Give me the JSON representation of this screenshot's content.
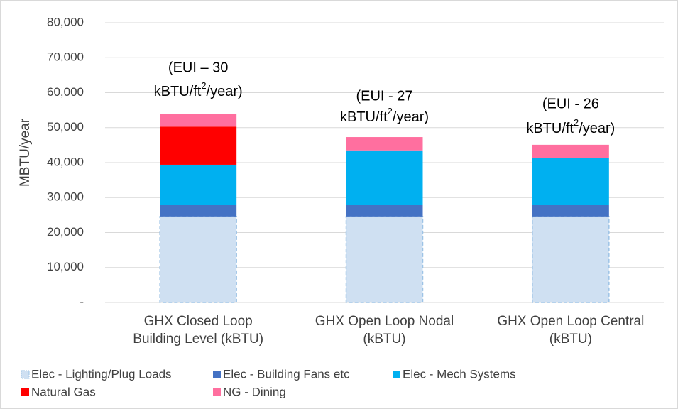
{
  "chart_data": {
    "type": "stacked_bar",
    "y_label": "MBTU/year",
    "categories": [
      [
        "GHX Closed Loop",
        "Building Level (kBTU)"
      ],
      [
        "GHX Open Loop Nodal",
        "(kBTU)"
      ],
      [
        "GHX Open Loop Central",
        "(kBTU)"
      ]
    ],
    "series": [
      {
        "name": "Elec - Lighting/Plug Loads",
        "color": "#cfe0f2",
        "values": [
          24600,
          24600,
          24600
        ]
      },
      {
        "name": "Elec - Building Fans etc",
        "color": "#4472c4",
        "values": [
          3400,
          3400,
          3400
        ]
      },
      {
        "name": "Elec - Mech Systems",
        "color": "#00b0f0",
        "values": [
          11400,
          15500,
          13400
        ]
      },
      {
        "name": "Natural Gas",
        "color": "#ff0000",
        "values": [
          10900,
          0,
          0
        ]
      },
      {
        "name": "NG - Dining",
        "color": "#ff6f9f",
        "values": [
          3700,
          3800,
          3700
        ]
      }
    ],
    "annotations": [
      {
        "line1": "(EUI – 30",
        "line2_pre": "kBTU/ft",
        "sup": "2",
        "line2_post": "/year)"
      },
      {
        "line1": "(EUI - 27",
        "line2_pre": "kBTU/ft",
        "sup": "2",
        "line2_post": "/year)"
      },
      {
        "line1": "(EUI - 26",
        "line2_pre": "kBTU/ft",
        "sup": "2",
        "line2_post": "/year)"
      }
    ],
    "ylim": [
      0,
      80000
    ],
    "yticks": [
      {
        "value": 0,
        "label": "-"
      },
      {
        "value": 10000,
        "label": "10,000"
      },
      {
        "value": 20000,
        "label": "20,000"
      },
      {
        "value": 30000,
        "label": "30,000"
      },
      {
        "value": 40000,
        "label": "40,000"
      },
      {
        "value": 50000,
        "label": "50,000"
      },
      {
        "value": 60000,
        "label": "60,000"
      },
      {
        "value": 70000,
        "label": "70,000"
      },
      {
        "value": 80000,
        "label": "80,000"
      }
    ],
    "grid": true
  }
}
